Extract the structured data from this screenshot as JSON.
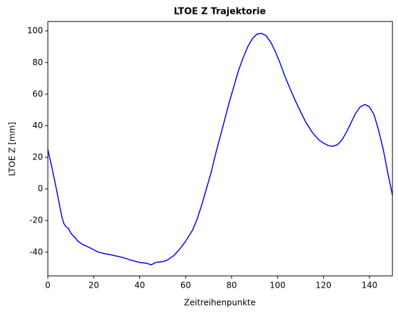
{
  "chart_data": {
    "type": "line",
    "title": "LTOE Z Trajektorie",
    "x_label": "Zeitreihenpunkte",
    "y_label": "LTOE Z [mm]",
    "x": [
      0,
      2,
      4,
      6,
      7,
      8,
      9,
      10,
      12,
      13,
      15,
      18,
      20,
      22,
      25,
      27,
      30,
      33,
      36,
      40,
      43,
      45,
      47,
      50,
      52,
      55,
      58,
      60,
      63,
      65,
      67,
      69,
      71,
      73,
      75,
      77,
      79,
      81,
      83,
      85,
      87,
      89,
      91,
      93,
      95,
      97,
      99,
      101,
      103,
      105,
      108,
      110,
      112,
      115,
      118,
      120,
      122,
      124,
      126,
      128,
      130,
      132,
      134,
      136,
      138,
      140,
      142,
      144,
      146,
      148,
      150
    ],
    "series": [
      {
        "name": "LTOE Z",
        "color": "#0000ff",
        "values": [
          25,
          12,
          -2,
          -17,
          -22,
          -24,
          -25,
          -28,
          -31,
          -33,
          -35,
          -37,
          -38.5,
          -40,
          -41,
          -41.5,
          -42.5,
          -43.5,
          -45,
          -46.5,
          -47,
          -48,
          -46.5,
          -46,
          -45,
          -42,
          -37,
          -33,
          -26,
          -19,
          -10,
          0,
          10,
          22,
          33,
          44,
          55,
          65,
          75,
          83,
          90,
          95,
          98,
          98.5,
          97,
          93,
          87,
          80,
          72,
          65,
          55,
          49,
          43,
          36,
          31,
          29,
          27.5,
          27,
          28,
          31,
          36,
          42,
          48,
          52,
          53.5,
          52,
          47,
          37,
          25,
          10,
          -4
        ]
      }
    ],
    "xlim": [
      0,
      150
    ],
    "xticks": [
      0,
      20,
      40,
      60,
      80,
      100,
      120,
      140
    ],
    "ylim": [
      -55,
      106
    ],
    "yticks": [
      -40,
      -20,
      0,
      20,
      40,
      60,
      80,
      100
    ]
  }
}
